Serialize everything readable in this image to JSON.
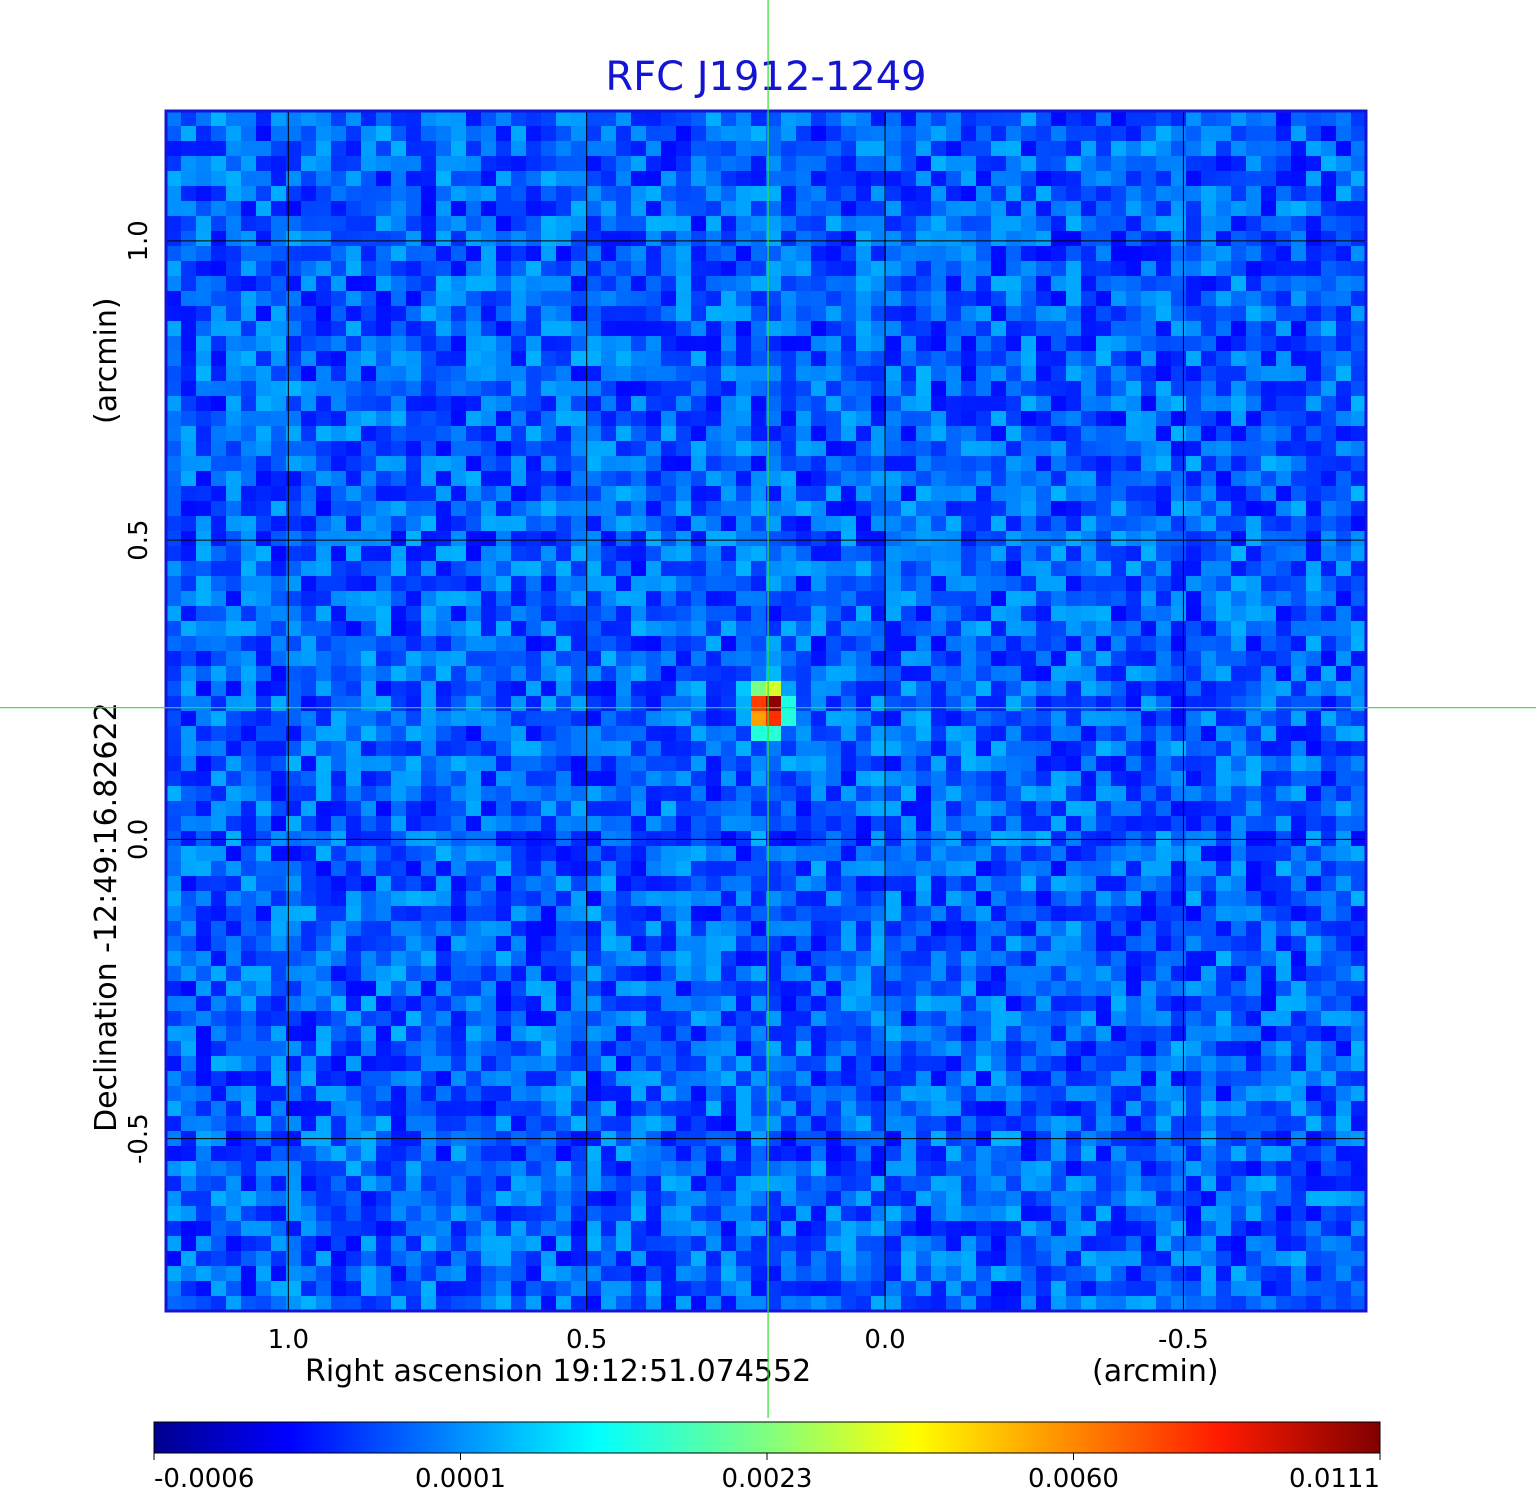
{
  "chart_data": {
    "type": "heatmap",
    "title": "RFC J1912-1249",
    "xlabel": "Right ascension  19:12:51.074552",
    "xunit": "(arcmin)",
    "ylabel": "Declination  -12:49:16.82622",
    "yunit": "(arcmin)",
    "x_ticks": [
      {
        "value": 1.0,
        "label": "1.0"
      },
      {
        "value": 0.5,
        "label": "0.5"
      },
      {
        "value": 0.0,
        "label": "0.0"
      },
      {
        "value": -0.5,
        "label": "-0.5"
      }
    ],
    "y_ticks": [
      {
        "value": 1.0,
        "label": "1.0"
      },
      {
        "value": 0.5,
        "label": "0.5"
      },
      {
        "value": 0.0,
        "label": "0.0"
      },
      {
        "value": -0.5,
        "label": "-0.5"
      }
    ],
    "xlim": [
      1.205,
      -0.806
    ],
    "ylim": [
      -0.788,
      1.217
    ],
    "x_reversed": true,
    "grid": true,
    "grid_color": "#000000",
    "crosshair": {
      "x": 0.196,
      "y": 0.22,
      "color": "#33dd33"
    },
    "source": {
      "x": 0.196,
      "y": 0.22,
      "peak": 0.0111
    },
    "noise_range": [
      -0.0006,
      0.0012
    ],
    "colorbar": {
      "ticks": [
        {
          "value": -0.0006,
          "label": "-0.0006"
        },
        {
          "value": 0.0001,
          "label": "0.0001"
        },
        {
          "value": 0.0023,
          "label": "0.0023"
        },
        {
          "value": 0.006,
          "label": "0.0060"
        },
        {
          "value": 0.0111,
          "label": "0.0111"
        }
      ],
      "colormap": "jet",
      "range": [
        -0.0006,
        0.0111
      ]
    },
    "frame_color": "#1414d2"
  }
}
